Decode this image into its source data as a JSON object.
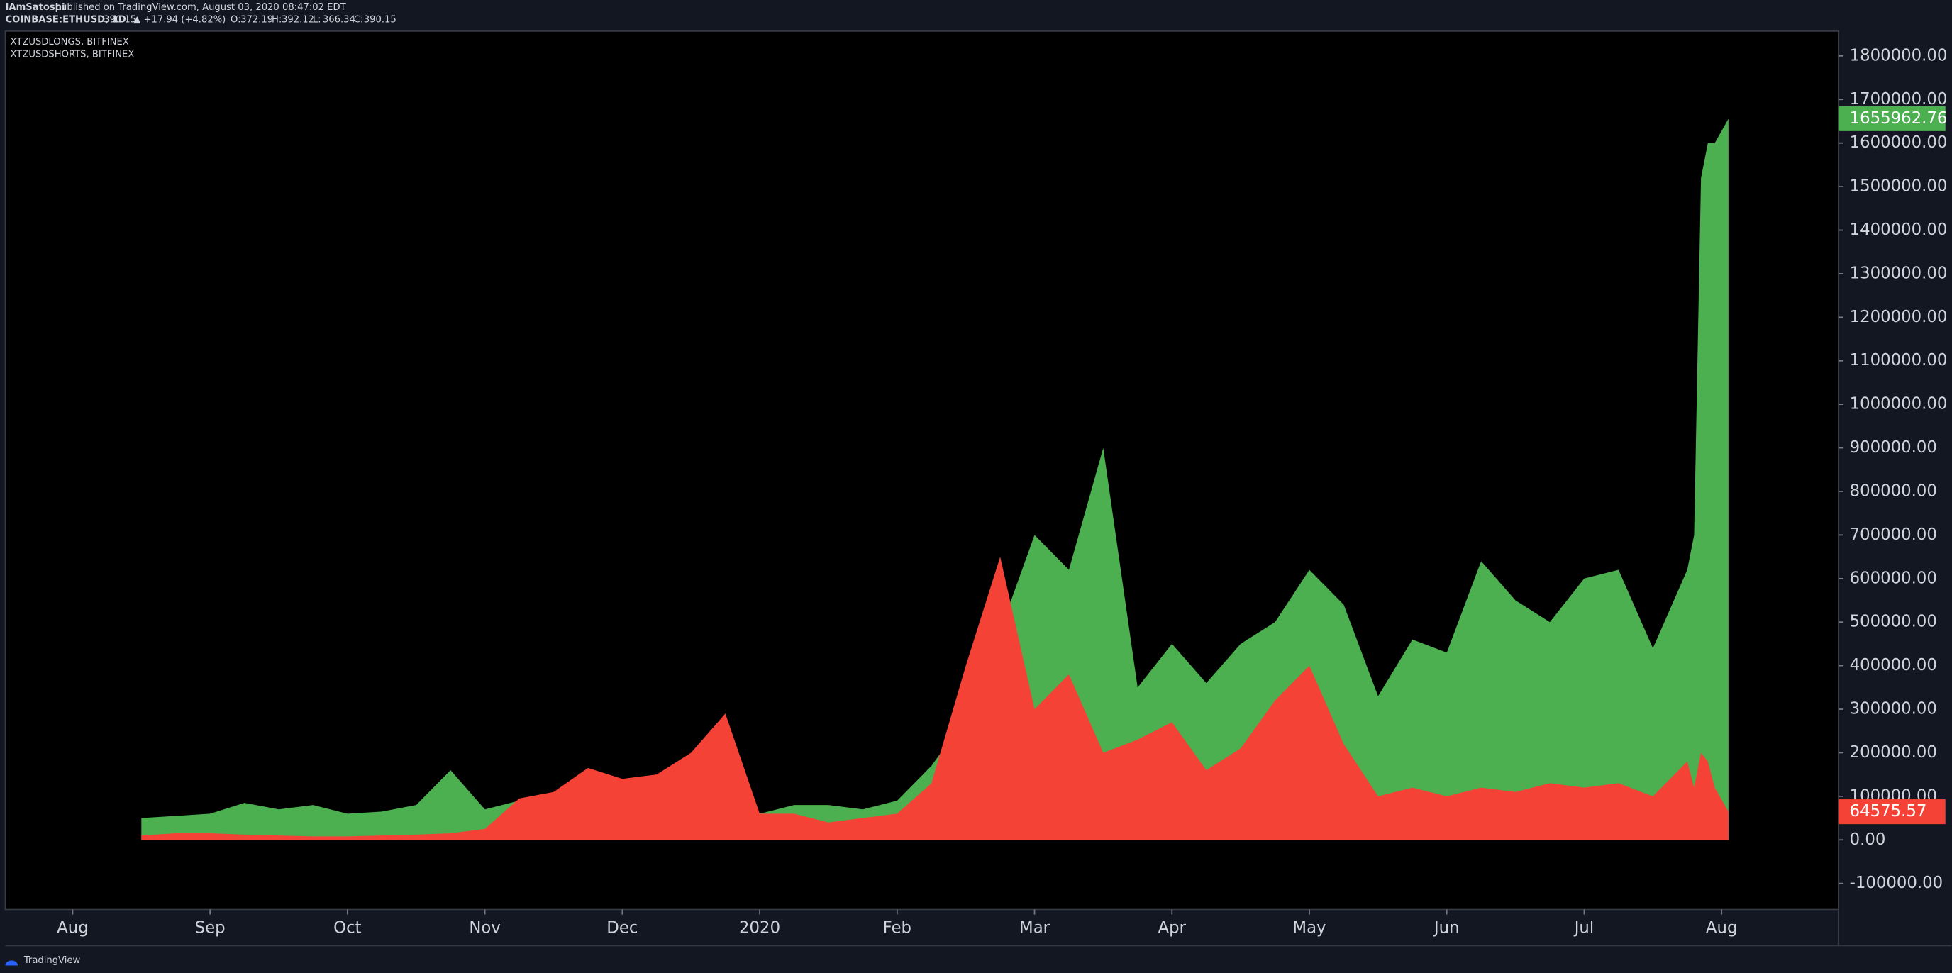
{
  "header": {
    "publisher": "IAmSatoshi",
    "published": "published on TradingView.com, August 03, 2020 08:47:02 EDT",
    "symbol": "COINBASE:ETHUSD, 1D",
    "price": "390.15",
    "change": "▲ +17.94 (+4.82%)",
    "ohlc": [
      {
        "label": "O:",
        "value": "372.19"
      },
      {
        "label": "H:",
        "value": "392.12"
      },
      {
        "label": "L:",
        "value": "366.34"
      },
      {
        "label": "C:",
        "value": "390.15"
      }
    ]
  },
  "footer": {
    "brand": "TradingView"
  },
  "chart_data": {
    "type": "area",
    "grid": false,
    "x": [
      0.5,
      0.75,
      1,
      1.25,
      1.5,
      1.75,
      2,
      2.25,
      2.5,
      2.75,
      3,
      3.25,
      3.5,
      3.75,
      4,
      4.25,
      4.5,
      4.75,
      5,
      5.25,
      5.5,
      5.75,
      6,
      6.25,
      6.5,
      6.75,
      7,
      7.25,
      7.5,
      7.75,
      8,
      8.25,
      8.5,
      8.75,
      9,
      9.25,
      9.5,
      9.75,
      10,
      10.25,
      10.5,
      10.75,
      11,
      11.25,
      11.5,
      11.75,
      11.8,
      11.85,
      11.9,
      11.95,
      12.05
    ],
    "xlim": [
      -0.49,
      12.85
    ],
    "xticks": [
      {
        "value": 0,
        "label": "Aug"
      },
      {
        "value": 1,
        "label": "Sep"
      },
      {
        "value": 2,
        "label": "Oct"
      },
      {
        "value": 3,
        "label": "Nov"
      },
      {
        "value": 4,
        "label": "Dec"
      },
      {
        "value": 5,
        "label": "2020"
      },
      {
        "value": 6,
        "label": "Feb"
      },
      {
        "value": 7,
        "label": "Mar"
      },
      {
        "value": 8,
        "label": "Apr"
      },
      {
        "value": 9,
        "label": "May"
      },
      {
        "value": 10,
        "label": "Jun"
      },
      {
        "value": 11,
        "label": "Jul"
      },
      {
        "value": 12,
        "label": "Aug"
      }
    ],
    "ylim": [
      -160000,
      1857000
    ],
    "yticks": [
      {
        "value": -100000,
        "label": "-100000.00"
      },
      {
        "value": 0,
        "label": "0.00"
      },
      {
        "value": 100000,
        "label": "100000.00"
      },
      {
        "value": 200000,
        "label": "200000.00"
      },
      {
        "value": 300000,
        "label": "300000.00"
      },
      {
        "value": 400000,
        "label": "400000.00"
      },
      {
        "value": 500000,
        "label": "500000.00"
      },
      {
        "value": 600000,
        "label": "600000.00"
      },
      {
        "value": 700000,
        "label": "700000.00"
      },
      {
        "value": 800000,
        "label": "800000.00"
      },
      {
        "value": 900000,
        "label": "900000.00"
      },
      {
        "value": 1000000,
        "label": "1000000.00"
      },
      {
        "value": 1100000,
        "label": "1100000.00"
      },
      {
        "value": 1200000,
        "label": "1200000.00"
      },
      {
        "value": 1300000,
        "label": "1300000.00"
      },
      {
        "value": 1400000,
        "label": "1400000.00"
      },
      {
        "value": 1500000,
        "label": "1500000.00"
      },
      {
        "value": 1600000,
        "label": "1600000.00"
      },
      {
        "value": 1700000,
        "label": "1700000.00"
      },
      {
        "value": 1800000,
        "label": "1800000.00"
      }
    ],
    "series": [
      {
        "name": "XTZUSDLONGS, BITFINEX",
        "color": "#4caf50",
        "values": [
          50000,
          55000,
          60000,
          85000,
          70000,
          80000,
          60000,
          65000,
          80000,
          160000,
          70000,
          90000,
          80000,
          80000,
          80000,
          80000,
          90000,
          60000,
          60000,
          80000,
          80000,
          70000,
          90000,
          170000,
          280000,
          480000,
          700000,
          620000,
          900000,
          350000,
          450000,
          360000,
          450000,
          500000,
          620000,
          540000,
          330000,
          460000,
          430000,
          640000,
          550000,
          500000,
          600000,
          620000,
          440000,
          620000,
          700000,
          1520000,
          1600000,
          1600000,
          1655962.76
        ]
      },
      {
        "name": "XTZUSDSHORTS, BITFINEX",
        "color": "#f44336",
        "values": [
          10000,
          15000,
          15000,
          12000,
          10000,
          8000,
          8000,
          10000,
          12000,
          15000,
          25000,
          95000,
          110000,
          165000,
          140000,
          150000,
          200000,
          290000,
          60000,
          60000,
          40000,
          50000,
          60000,
          130000,
          400000,
          650000,
          300000,
          380000,
          200000,
          230000,
          270000,
          160000,
          210000,
          320000,
          400000,
          220000,
          100000,
          120000,
          100000,
          120000,
          110000,
          130000,
          120000,
          130000,
          100000,
          180000,
          120000,
          200000,
          180000,
          120000,
          64575.57
        ]
      }
    ]
  }
}
